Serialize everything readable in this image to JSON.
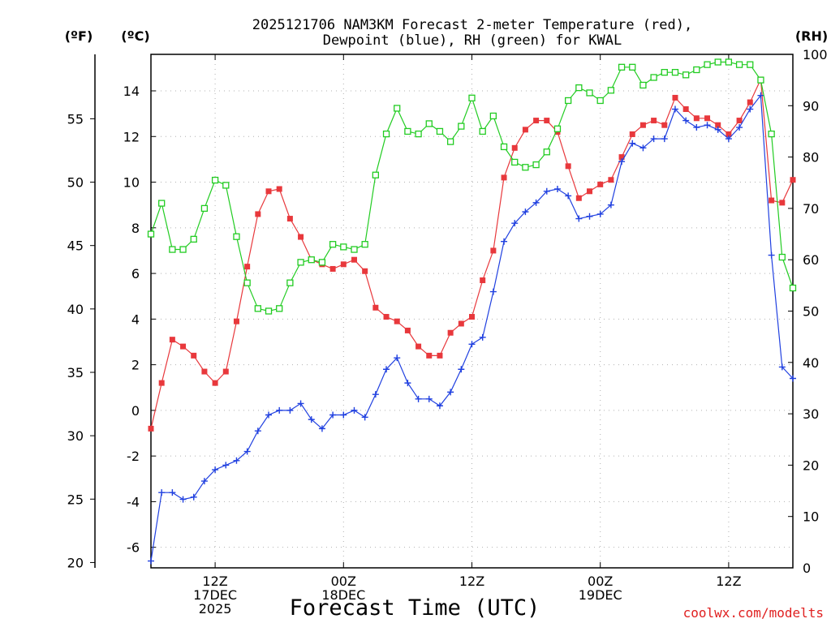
{
  "chart_data": {
    "type": "line",
    "title_lines": [
      "2025121706 NAM3KM Forecast 2-meter Temperature (red),",
      "Dewpoint (blue), RH (green) for KWAL"
    ],
    "xlabel": "Forecast Time (UTC)",
    "credit": "coolwx.com/modelts",
    "units": {
      "f": "(ºF)",
      "c": "(ºC)",
      "rh": "(RH)"
    },
    "x_range_hours": [
      0,
      60
    ],
    "x_ticks": [
      {
        "hour": 6,
        "lines": [
          "12Z",
          "17DEC",
          "2025"
        ]
      },
      {
        "hour": 18,
        "lines": [
          "00Z",
          "18DEC"
        ]
      },
      {
        "hour": 30,
        "lines": [
          "12Z"
        ]
      },
      {
        "hour": 42,
        "lines": [
          "00Z",
          "19DEC"
        ]
      },
      {
        "hour": 54,
        "lines": [
          "12Z"
        ]
      }
    ],
    "ylim_c": [
      -6.9,
      15.6
    ],
    "c_ticks": [
      -6,
      -4,
      -2,
      0,
      2,
      4,
      6,
      8,
      10,
      12,
      14
    ],
    "f_ticks": [
      20,
      25,
      30,
      35,
      40,
      45,
      50,
      55
    ],
    "rh_ticks": [
      0,
      10,
      20,
      30,
      40,
      50,
      60,
      70,
      80,
      90,
      100
    ],
    "series": [
      {
        "name": "2-meter Temperature (°C)",
        "color": "#e8383c",
        "marker": "filled-square",
        "values": [
          -0.8,
          1.2,
          3.1,
          2.8,
          2.4,
          1.7,
          1.2,
          1.7,
          3.9,
          6.3,
          8.6,
          9.6,
          9.7,
          8.4,
          7.6,
          6.6,
          6.4,
          6.2,
          6.4,
          6.6,
          6.1,
          4.5,
          4.1,
          3.9,
          3.5,
          2.8,
          2.4,
          2.4,
          3.4,
          3.8,
          4.1,
          5.7,
          7.0,
          10.2,
          11.5,
          12.3,
          12.7,
          12.7,
          12.2,
          10.7,
          9.3,
          9.6,
          9.9,
          10.1,
          11.1,
          12.1,
          12.5,
          12.7,
          12.5,
          13.7,
          13.2,
          12.8,
          12.8,
          12.5,
          12.1,
          12.7,
          13.5,
          14.5,
          9.2,
          9.1,
          10.1
        ]
      },
      {
        "name": "Dewpoint (°C)",
        "color": "#2040e0",
        "marker": "plus",
        "values": [
          -6.6,
          -3.6,
          -3.6,
          -3.9,
          -3.8,
          -3.1,
          -2.6,
          -2.4,
          -2.2,
          -1.8,
          -0.9,
          -0.2,
          0.0,
          0.0,
          0.3,
          -0.4,
          -0.8,
          -0.2,
          -0.2,
          0.0,
          -0.3,
          0.7,
          1.8,
          2.3,
          1.2,
          0.5,
          0.5,
          0.2,
          0.8,
          1.8,
          2.9,
          3.2,
          5.2,
          7.4,
          8.2,
          8.7,
          9.1,
          9.6,
          9.7,
          9.4,
          8.4,
          8.5,
          8.6,
          9.0,
          10.9,
          11.7,
          11.5,
          11.9,
          11.9,
          13.2,
          12.7,
          12.4,
          12.5,
          12.3,
          11.9,
          12.4,
          13.2,
          13.8,
          6.8,
          1.9,
          1.4
        ]
      },
      {
        "name": "Relative Humidity (%)",
        "color": "#22cc22",
        "marker": "open-square",
        "axis": "rh",
        "values": [
          65,
          71,
          62,
          62,
          64,
          70,
          75.5,
          74.5,
          64.5,
          55.5,
          50.5,
          50,
          50.5,
          55.5,
          59.5,
          60,
          59.5,
          63,
          62.5,
          62,
          63,
          76.5,
          84.5,
          89.5,
          85,
          84.5,
          86.5,
          85,
          83,
          86,
          91.5,
          85,
          88,
          82,
          79,
          78,
          78.5,
          81,
          85.5,
          91,
          93.5,
          92.5,
          91,
          93,
          97.5,
          97.5,
          94,
          95.5,
          96.5,
          96.5,
          96,
          97,
          98,
          98.5,
          98.5,
          98,
          98,
          95,
          84.5,
          60.5,
          54.5
        ]
      }
    ]
  }
}
